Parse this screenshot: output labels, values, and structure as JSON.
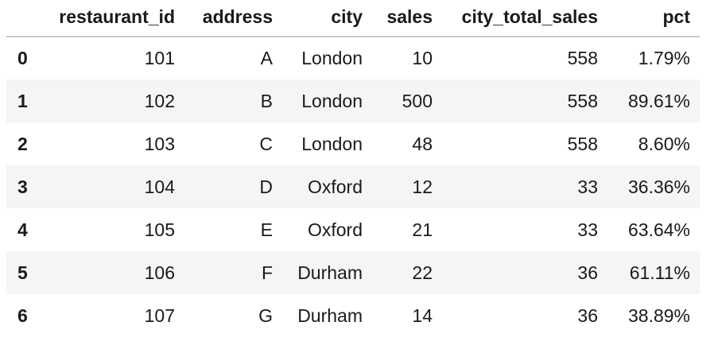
{
  "table": {
    "index_header": "",
    "columns": [
      "restaurant_id",
      "address",
      "city",
      "sales",
      "city_total_sales",
      "pct"
    ],
    "rows": [
      {
        "index": "0",
        "restaurant_id": "101",
        "address": "A",
        "city": "London",
        "sales": "10",
        "city_total_sales": "558",
        "pct": "1.79%"
      },
      {
        "index": "1",
        "restaurant_id": "102",
        "address": "B",
        "city": "London",
        "sales": "500",
        "city_total_sales": "558",
        "pct": "89.61%"
      },
      {
        "index": "2",
        "restaurant_id": "103",
        "address": "C",
        "city": "London",
        "sales": "48",
        "city_total_sales": "558",
        "pct": "8.60%"
      },
      {
        "index": "3",
        "restaurant_id": "104",
        "address": "D",
        "city": "Oxford",
        "sales": "12",
        "city_total_sales": "33",
        "pct": "36.36%"
      },
      {
        "index": "4",
        "restaurant_id": "105",
        "address": "E",
        "city": "Oxford",
        "sales": "21",
        "city_total_sales": "33",
        "pct": "63.64%"
      },
      {
        "index": "5",
        "restaurant_id": "106",
        "address": "F",
        "city": "Durham",
        "sales": "22",
        "city_total_sales": "36",
        "pct": "61.11%"
      },
      {
        "index": "6",
        "restaurant_id": "107",
        "address": "G",
        "city": "Durham",
        "sales": "14",
        "city_total_sales": "36",
        "pct": "38.89%"
      }
    ]
  },
  "colors": {
    "header_rule": "#c8c8c8",
    "row_stripe": "#f5f5f5",
    "text": "#1a1a1a"
  }
}
